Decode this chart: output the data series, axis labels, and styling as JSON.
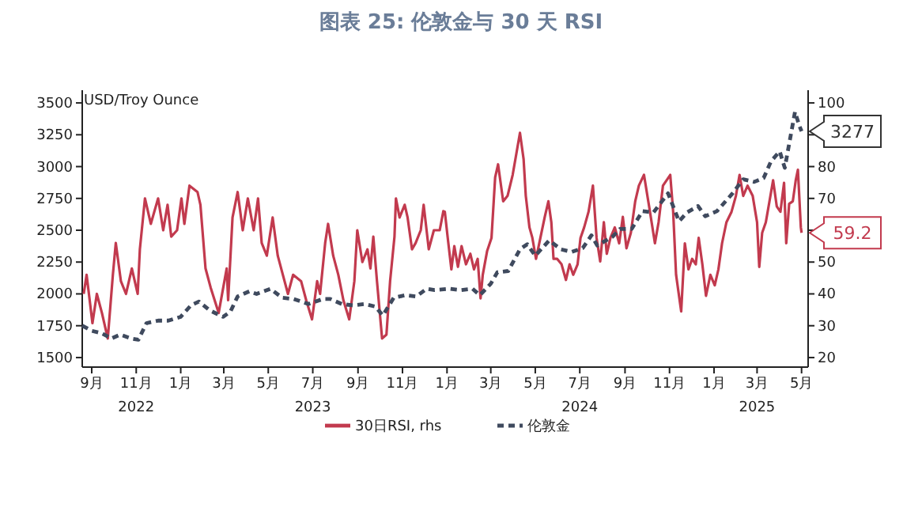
{
  "chart_data": {
    "type": "line",
    "title": "图表 25: 伦敦金与 30 天 RSI",
    "ylabel": "USD/Troy Ounce",
    "legend": "bottom",
    "xlim": [
      "2022-08-19",
      "2025-05-10"
    ],
    "xticks": [
      {
        "value": "2022-09-01",
        "label": "9月"
      },
      {
        "value": "2022-11-01",
        "label": "11月\n2022"
      },
      {
        "value": "2023-01-01",
        "label": "1月"
      },
      {
        "value": "2023-03-01",
        "label": "3月"
      },
      {
        "value": "2023-05-01",
        "label": "5月"
      },
      {
        "value": "2023-07-01",
        "label": "7月\n2023"
      },
      {
        "value": "2023-09-01",
        "label": "9月"
      },
      {
        "value": "2023-11-01",
        "label": "11月"
      },
      {
        "value": "2024-01-01",
        "label": "1月"
      },
      {
        "value": "2024-03-01",
        "label": "3月"
      },
      {
        "value": "2024-05-01",
        "label": "5月"
      },
      {
        "value": "2024-07-01",
        "label": "7月\n2024"
      },
      {
        "value": "2024-09-01",
        "label": "9月"
      },
      {
        "value": "2024-11-01",
        "label": "11月"
      },
      {
        "value": "2025-01-01",
        "label": "1月"
      },
      {
        "value": "2025-03-01",
        "label": "3月\n2025"
      },
      {
        "value": "2025-05-01",
        "label": "5月"
      }
    ],
    "ylim": [
      1425,
      3600
    ],
    "yticks": [
      1500,
      1750,
      2000,
      2250,
      2500,
      2750,
      3000,
      3250,
      3500
    ],
    "y2lim": [
      17,
      104
    ],
    "y2ticks": [
      20,
      30,
      40,
      50,
      {
        "value": 60,
        "label": null
      },
      70,
      80,
      {
        "value": 90,
        "label": null
      },
      100
    ],
    "series": [
      {
        "name": "30日RSI, rhs",
        "color": "#c23a4e",
        "axis": "y2",
        "line_style": "solid",
        "x": [
          "2022-08-21",
          "2022-08-25",
          "2022-09-02",
          "2022-09-08",
          "2022-09-15",
          "2022-09-23",
          "2022-09-30",
          "2022-10-04",
          "2022-10-11",
          "2022-10-18",
          "2022-10-26",
          "2022-11-03",
          "2022-11-06",
          "2022-11-13",
          "2022-11-21",
          "2022-12-01",
          "2022-12-08",
          "2022-12-14",
          "2022-12-19",
          "2022-12-27",
          "2023-01-02",
          "2023-01-06",
          "2023-01-13",
          "2023-01-24",
          "2023-01-28",
          "2023-02-04",
          "2023-02-11",
          "2023-02-22",
          "2023-03-05",
          "2023-03-07",
          "2023-03-13",
          "2023-03-20",
          "2023-03-27",
          "2023-04-03",
          "2023-04-11",
          "2023-04-17",
          "2023-04-22",
          "2023-04-29",
          "2023-05-07",
          "2023-05-14",
          "2023-05-21",
          "2023-05-28",
          "2023-06-04",
          "2023-06-15",
          "2023-06-22",
          "2023-06-30",
          "2023-07-07",
          "2023-07-11",
          "2023-07-18",
          "2023-07-22",
          "2023-07-29",
          "2023-08-05",
          "2023-08-12",
          "2023-08-20",
          "2023-08-27",
          "2023-08-31",
          "2023-09-07",
          "2023-09-14",
          "2023-09-18",
          "2023-09-22",
          "2023-09-27",
          "2023-10-04",
          "2023-10-10",
          "2023-10-15",
          "2023-10-21",
          "2023-10-23",
          "2023-10-28",
          "2023-11-04",
          "2023-11-08",
          "2023-11-14",
          "2023-11-19",
          "2023-11-26",
          "2023-11-30",
          "2023-12-07",
          "2023-12-14",
          "2023-12-22",
          "2023-12-27",
          "2023-12-29",
          "2024-01-02",
          "2024-01-07",
          "2024-01-11",
          "2024-01-16",
          "2024-01-21",
          "2024-01-27",
          "2024-02-02",
          "2024-02-07",
          "2024-02-12",
          "2024-02-16",
          "2024-02-19",
          "2024-02-25",
          "2024-03-02",
          "2024-03-07",
          "2024-03-11",
          "2024-03-18",
          "2024-03-24",
          "2024-03-31",
          "2024-04-05",
          "2024-04-10",
          "2024-04-15",
          "2024-04-18",
          "2024-04-23",
          "2024-04-27",
          "2024-05-02",
          "2024-05-08",
          "2024-05-14",
          "2024-05-19",
          "2024-05-23",
          "2024-05-26",
          "2024-05-31",
          "2024-06-06",
          "2024-06-12",
          "2024-06-17",
          "2024-06-22",
          "2024-06-28",
          "2024-07-02",
          "2024-07-07",
          "2024-07-13",
          "2024-07-19",
          "2024-07-24",
          "2024-07-29",
          "2024-08-03",
          "2024-08-07",
          "2024-08-12",
          "2024-08-18",
          "2024-08-24",
          "2024-08-29",
          "2024-09-03",
          "2024-09-09",
          "2024-09-15",
          "2024-09-20",
          "2024-09-27",
          "2024-10-04",
          "2024-10-12",
          "2024-10-17",
          "2024-10-23",
          "2024-10-28",
          "2024-11-02",
          "2024-11-06",
          "2024-11-10",
          "2024-11-17",
          "2024-11-22",
          "2024-11-27",
          "2024-12-02",
          "2024-12-07",
          "2024-12-11",
          "2024-12-16",
          "2024-12-21",
          "2024-12-27",
          "2025-01-02",
          "2025-01-07",
          "2025-01-12",
          "2025-01-18",
          "2025-01-25",
          "2025-01-31",
          "2025-02-05",
          "2025-02-10",
          "2025-02-16",
          "2025-02-23",
          "2025-03-01",
          "2025-03-04",
          "2025-03-08",
          "2025-03-13",
          "2025-03-18",
          "2025-03-23",
          "2025-03-28",
          "2025-04-02",
          "2025-04-07",
          "2025-04-10",
          "2025-04-14",
          "2025-04-19",
          "2025-04-23",
          "2025-04-26",
          "2025-04-30",
          "2025-05-01"
        ],
        "values": [
          40,
          46,
          30.8,
          40,
          34,
          26,
          46,
          56,
          44,
          40,
          48,
          40,
          54,
          70,
          62,
          70,
          60,
          68,
          58,
          60,
          70,
          62,
          74,
          72,
          68,
          48,
          42,
          34,
          48,
          38,
          64,
          72,
          60,
          70,
          60,
          70,
          56,
          52,
          64,
          52,
          46,
          40,
          46,
          44,
          38,
          32,
          44,
          40,
          56,
          62,
          52,
          46,
          38,
          32,
          44,
          60,
          50,
          54,
          48,
          58,
          44,
          26,
          27.2,
          44,
          58,
          70,
          64,
          68,
          64,
          54,
          56,
          60,
          68,
          54,
          60,
          60,
          66,
          65.8,
          57.6,
          47.7,
          55,
          48.5,
          55,
          49.3,
          52.6,
          47.7,
          51,
          38.6,
          46,
          53.5,
          57.6,
          76.6,
          80.7,
          69.1,
          70.8,
          77.4,
          84,
          90.6,
          82.3,
          70.8,
          60.9,
          57.6,
          51,
          57.6,
          64.2,
          69.1,
          62.5,
          51,
          51,
          49.3,
          44.4,
          49.3,
          46,
          49.3,
          57.6,
          60.9,
          65.8,
          74,
          57.6,
          50.2,
          62.5,
          52.6,
          57.6,
          60.9,
          55.9,
          64.2,
          54.3,
          59.2,
          69.1,
          74,
          77.4,
          67.5,
          55.9,
          62.5,
          74,
          75.7,
          77.4,
          65.8,
          46,
          34.5,
          55.9,
          47.7,
          51,
          49.3,
          57.6,
          49.3,
          39.4,
          46,
          42.7,
          47.7,
          55.9,
          62.5,
          65.8,
          70.8,
          77.4,
          70.8,
          74,
          70.8,
          62.5,
          48.5,
          59.2,
          62.5,
          69.1,
          75.7,
          67.5,
          65.8,
          74.9,
          55.9,
          68.3,
          69.1,
          75.7,
          79,
          60.9,
          59.2
        ],
        "value_labels": [
          null,
          null,
          null,
          null,
          null,
          null,
          null,
          null,
          null,
          null,
          null,
          null,
          null,
          null,
          null,
          null,
          null,
          null,
          null,
          null,
          null,
          null,
          null,
          null,
          null,
          null,
          null,
          null,
          null,
          null,
          null,
          null,
          null,
          null,
          null,
          null,
          null,
          null,
          null,
          null,
          null,
          null,
          null,
          null,
          null,
          null,
          null,
          null,
          null,
          null,
          null,
          null,
          null,
          null,
          null,
          null,
          null,
          null,
          null,
          null,
          null,
          null,
          null,
          null,
          null,
          null,
          null,
          null,
          null,
          null,
          null,
          null,
          null,
          null,
          null,
          null,
          null,
          null,
          null,
          null,
          null,
          null,
          null,
          null,
          null,
          null,
          null,
          null,
          null,
          null,
          null,
          null,
          null,
          null,
          null,
          null,
          null,
          null,
          null,
          null,
          null,
          null,
          null,
          null,
          null,
          null,
          null,
          null,
          null,
          null,
          null,
          null,
          null,
          null,
          null,
          null,
          null,
          null,
          null,
          null,
          null,
          null,
          null,
          null,
          null,
          null,
          null,
          null,
          null,
          null,
          null,
          null,
          null,
          null,
          null,
          null,
          null,
          null,
          null,
          null,
          null,
          null,
          null,
          null,
          null,
          null,
          null,
          null,
          null,
          null,
          null,
          null,
          null,
          null,
          null,
          null,
          null,
          null,
          null,
          null,
          null,
          null,
          null,
          null,
          null,
          null,
          null,
          null,
          null,
          null,
          null,
          null,
          null,
          "59.2"
        ]
      },
      {
        "name": "伦敦金",
        "color": "#3f4a5e",
        "line_style": "dashed",
        "x": [
          "2022-08-19",
          "2022-09-01",
          "2022-09-15",
          "2022-09-28",
          "2022-10-10",
          "2022-10-25",
          "2022-11-04",
          "2022-11-15",
          "2022-12-01",
          "2022-12-15",
          "2023-01-01",
          "2023-01-15",
          "2023-01-26",
          "2023-02-10",
          "2023-02-28",
          "2023-03-10",
          "2023-03-20",
          "2023-04-05",
          "2023-04-15",
          "2023-05-04",
          "2023-05-20",
          "2023-06-05",
          "2023-06-25",
          "2023-07-15",
          "2023-07-25",
          "2023-08-10",
          "2023-08-25",
          "2023-09-10",
          "2023-09-25",
          "2023-10-05",
          "2023-10-20",
          "2023-11-05",
          "2023-11-20",
          "2023-12-04",
          "2023-12-15",
          "2024-01-05",
          "2024-01-20",
          "2024-02-05",
          "2024-02-15",
          "2024-03-01",
          "2024-03-10",
          "2024-03-25",
          "2024-04-10",
          "2024-04-20",
          "2024-05-01",
          "2024-05-20",
          "2024-06-05",
          "2024-06-20",
          "2024-07-05",
          "2024-07-17",
          "2024-07-25",
          "2024-08-15",
          "2024-08-25",
          "2024-09-10",
          "2024-09-25",
          "2024-10-10",
          "2024-10-30",
          "2024-11-14",
          "2024-11-25",
          "2024-12-10",
          "2024-12-20",
          "2025-01-05",
          "2025-01-25",
          "2025-02-10",
          "2025-02-25",
          "2025-03-10",
          "2025-03-20",
          "2025-04-01",
          "2025-04-08",
          "2025-04-22",
          "2025-04-28",
          "2025-05-01"
        ],
        "values": [
          1750,
          1710,
          1690,
          1650,
          1680,
          1650,
          1640,
          1770,
          1790,
          1790,
          1820,
          1910,
          1940,
          1870,
          1820,
          1860,
          1980,
          2020,
          2000,
          2040,
          1970,
          1960,
          1920,
          1960,
          1960,
          1920,
          1910,
          1920,
          1900,
          1830,
          1970,
          1990,
          1980,
          2040,
          2030,
          2040,
          2030,
          2040,
          1990,
          2080,
          2170,
          2180,
          2350,
          2390,
          2300,
          2420,
          2350,
          2330,
          2360,
          2460,
          2380,
          2450,
          2510,
          2510,
          2650,
          2640,
          2790,
          2570,
          2640,
          2690,
          2610,
          2650,
          2780,
          2900,
          2880,
          2910,
          3040,
          3120,
          2990,
          3430,
          3320,
          3277
        ],
        "value_labels": [
          null,
          null,
          null,
          null,
          null,
          null,
          null,
          null,
          null,
          null,
          null,
          null,
          null,
          null,
          null,
          null,
          null,
          null,
          null,
          null,
          null,
          null,
          null,
          null,
          null,
          null,
          null,
          null,
          null,
          null,
          null,
          null,
          null,
          null,
          null,
          null,
          null,
          null,
          null,
          null,
          null,
          null,
          null,
          null,
          null,
          null,
          null,
          null,
          null,
          null,
          null,
          null,
          null,
          null,
          null,
          null,
          null,
          null,
          null,
          null,
          null,
          null,
          null,
          null,
          null,
          null,
          null,
          null,
          null,
          null,
          null,
          "3277"
        ]
      }
    ]
  }
}
